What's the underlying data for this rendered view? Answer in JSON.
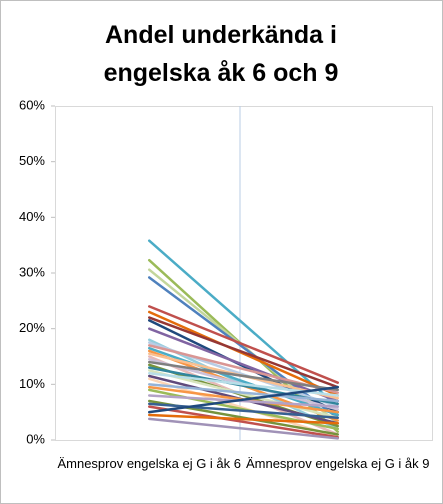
{
  "chart_data": {
    "type": "line",
    "title": "Andel underkända i engelska åk 6 och 9",
    "categories": [
      "Ämnesprov engelska ej G i åk 6",
      "Ämnesprov engelska ej G i åk 9"
    ],
    "ylim": [
      0,
      60
    ],
    "yticks": [
      {
        "value": 0,
        "label": "0%"
      },
      {
        "value": 10,
        "label": "10%"
      },
      {
        "value": 20,
        "label": "20%"
      },
      {
        "value": 30,
        "label": "30%"
      },
      {
        "value": 40,
        "label": "40%"
      },
      {
        "value": 50,
        "label": "50%"
      },
      {
        "value": 60,
        "label": "60%"
      }
    ],
    "series": [
      {
        "color": "#4bacc6",
        "values": [
          35.8,
          6
        ]
      },
      {
        "color": "#9bbb59",
        "values": [
          32.3,
          1.5
        ]
      },
      {
        "color": "#c3d69b",
        "values": [
          30.6,
          3
        ]
      },
      {
        "color": "#4f81bd",
        "values": [
          29.2,
          4
        ]
      },
      {
        "color": "#c0504d",
        "values": [
          24,
          10.3
        ]
      },
      {
        "color": "#e46c0a",
        "values": [
          23,
          8
        ]
      },
      {
        "color": "#953735",
        "values": [
          22,
          9.5
        ]
      },
      {
        "color": "#1f497d",
        "values": [
          21.5,
          5
        ]
      },
      {
        "color": "#8064a2",
        "values": [
          20,
          7
        ]
      },
      {
        "color": "#93cddd",
        "values": [
          18,
          2
        ]
      },
      {
        "color": "#b9cde5",
        "values": [
          17.5,
          6
        ]
      },
      {
        "color": "#d99694",
        "values": [
          17,
          8.5
        ]
      },
      {
        "color": "#4bacc6",
        "values": [
          16.5,
          4.5
        ]
      },
      {
        "color": "#f79646",
        "values": [
          16,
          3.5
        ]
      },
      {
        "color": "#fac090",
        "values": [
          15.5,
          7.5
        ]
      },
      {
        "color": "#e6b9b8",
        "values": [
          15,
          1
        ]
      },
      {
        "color": "#ccc1da",
        "values": [
          14.5,
          5.5
        ]
      },
      {
        "color": "#7f7f7f",
        "values": [
          14,
          9
        ]
      },
      {
        "color": "#77933c",
        "values": [
          13.5,
          2.5
        ]
      },
      {
        "color": "#31859c",
        "values": [
          13,
          6.5
        ]
      },
      {
        "color": "#d7e4bd",
        "values": [
          12.5,
          4
        ]
      },
      {
        "color": "#b7dee8",
        "values": [
          12,
          8
        ]
      },
      {
        "color": "#604a7b",
        "values": [
          11.5,
          3
        ]
      },
      {
        "color": "#fcd5b5",
        "values": [
          11,
          0.5
        ]
      },
      {
        "color": "#95b3d7",
        "values": [
          10,
          7
        ]
      },
      {
        "color": "#f79646",
        "values": [
          9.5,
          5
        ]
      },
      {
        "color": "#9bbb59",
        "values": [
          9,
          2
        ]
      },
      {
        "color": "#b3a2c7",
        "values": [
          8,
          6
        ]
      },
      {
        "color": "#76923c",
        "values": [
          7,
          1
        ]
      },
      {
        "color": "#366092",
        "values": [
          6.5,
          4
        ]
      },
      {
        "color": "#c0504d",
        "values": [
          6,
          0.5
        ]
      },
      {
        "color": "#1f497d",
        "values": [
          5,
          9.5
        ]
      },
      {
        "color": "#e46c0a",
        "values": [
          4.5,
          3
        ]
      },
      {
        "color": "#a092b7",
        "values": [
          3.8,
          0.3
        ]
      }
    ]
  }
}
